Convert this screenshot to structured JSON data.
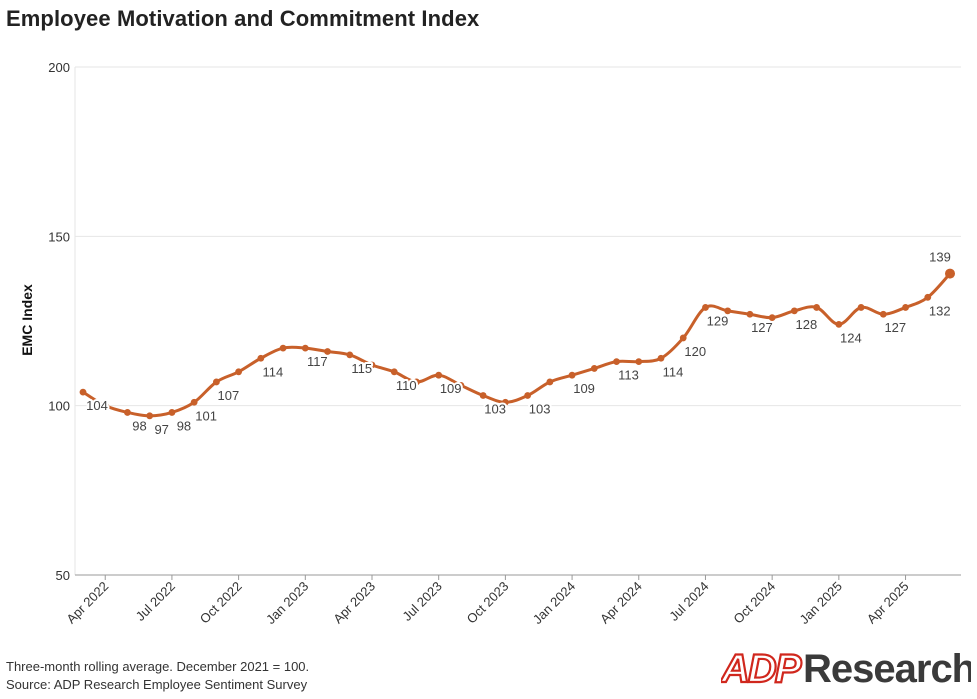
{
  "title": "Employee Motivation and Commitment Index",
  "footnote": {
    "line1": "Three-month rolling average. December 2021 = 100.",
    "line2": "Source: ADP Research Employee Sentiment Survey"
  },
  "logo": {
    "brand": "ADP",
    "word": "Research"
  },
  "colors": {
    "series": "#c8602a",
    "grid": "#e6e6e6",
    "axis": "#999999",
    "label": "#444444",
    "logo_red": "#d0271d",
    "logo_dark": "#3a3a3a"
  },
  "chart_data": {
    "type": "line",
    "ylabel": "EMC Index",
    "xlabel": "",
    "ylim": [
      50,
      200
    ],
    "yticks": [
      50,
      100,
      150,
      200
    ],
    "xticks": [
      "Apr 2022",
      "Jul 2022",
      "Oct 2022",
      "Jan 2023",
      "Apr 2023",
      "Jul 2023",
      "Oct 2023",
      "Jan 2024",
      "Apr 2024",
      "Jul 2024",
      "Oct 2024",
      "Jan 2025",
      "Apr 2025"
    ],
    "grid": true,
    "x": [
      "2022-03",
      "2022-04",
      "2022-05",
      "2022-06",
      "2022-07",
      "2022-08",
      "2022-09",
      "2022-10",
      "2022-11",
      "2022-12",
      "2023-01",
      "2023-02",
      "2023-03",
      "2023-04",
      "2023-05",
      "2023-06",
      "2023-07",
      "2023-08",
      "2023-09",
      "2023-10",
      "2023-11",
      "2023-12",
      "2024-01",
      "2024-02",
      "2024-03",
      "2024-04",
      "2024-05",
      "2024-06",
      "2024-07",
      "2024-08",
      "2024-09",
      "2024-10",
      "2024-11",
      "2024-12",
      "2025-01",
      "2025-02",
      "2025-03",
      "2025-04",
      "2025-05",
      "2025-06"
    ],
    "values": [
      104,
      100,
      98,
      97,
      98,
      101,
      107,
      110,
      114,
      117,
      117,
      116,
      115,
      112,
      110,
      107,
      109,
      106,
      103,
      101,
      103,
      107,
      109,
      111,
      113,
      113,
      114,
      120,
      129,
      128,
      127,
      126,
      128,
      129,
      124,
      129,
      127,
      129,
      132,
      139
    ],
    "labels": {
      "2022-03": "104",
      "2022-05": "98",
      "2022-06": "97",
      "2022-07": "98",
      "2022-08": "101",
      "2022-09": "107",
      "2022-11": "114",
      "2023-01": "117",
      "2023-03": "115",
      "2023-05": "110",
      "2023-07": "109",
      "2023-09": "103",
      "2023-11": "103",
      "2024-01": "109",
      "2024-03": "113",
      "2024-05": "114",
      "2024-06": "120",
      "2024-07": "129",
      "2024-09": "127",
      "2024-11": "128",
      "2025-01": "124",
      "2025-03": "127",
      "2025-05": "132",
      "2025-06": "139"
    }
  }
}
